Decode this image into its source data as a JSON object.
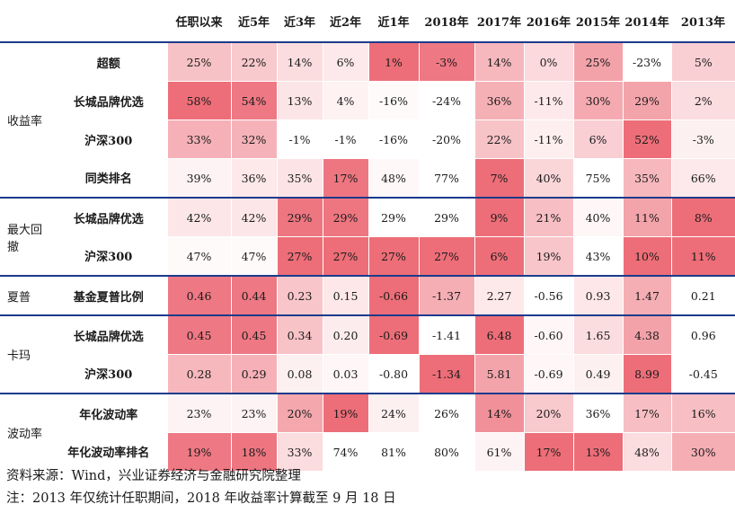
{
  "table": {
    "columns": [
      "任职以来",
      "近5年",
      "近3年",
      "近2年",
      "近1年",
      "2018年",
      "2017年",
      "2016年",
      "2015年",
      "2014年",
      "2013年"
    ],
    "groups": [
      {
        "name": "收益率",
        "rows": [
          {
            "label": "超额",
            "cells": [
              {
                "t": "25%",
                "c": "#f7c2c6"
              },
              {
                "t": "22%",
                "c": "#f8c9cd"
              },
              {
                "t": "14%",
                "c": "#fbdde0"
              },
              {
                "t": "6%",
                "c": "#fde9eb"
              },
              {
                "t": "1%",
                "c": "#ed6e78"
              },
              {
                "t": "-3%",
                "c": "#ee7883"
              },
              {
                "t": "14%",
                "c": "#f6b8bd"
              },
              {
                "t": "0%",
                "c": "#fbd9dc"
              },
              {
                "t": "25%",
                "c": "#f3a2a9"
              },
              {
                "t": "-23%",
                "c": "#ffffff"
              },
              {
                "t": "5%",
                "c": "#f9cfd3"
              }
            ]
          },
          {
            "label": "长城品牌优选",
            "cells": [
              {
                "t": "58%",
                "c": "#ed6e78"
              },
              {
                "t": "54%",
                "c": "#ee7883"
              },
              {
                "t": "13%",
                "c": "#fce5e7"
              },
              {
                "t": "4%",
                "c": "#fef2f3"
              },
              {
                "t": "-16%",
                "c": "#fffafa"
              },
              {
                "t": "-24%",
                "c": "#ffffff"
              },
              {
                "t": "36%",
                "c": "#f5b0b6"
              },
              {
                "t": "-11%",
                "c": "#fde9eb"
              },
              {
                "t": "30%",
                "c": "#f4aab0"
              },
              {
                "t": "29%",
                "c": "#f3a4ab"
              },
              {
                "t": "2%",
                "c": "#fbdcdf"
              }
            ]
          },
          {
            "label": "沪深300",
            "cells": [
              {
                "t": "33%",
                "c": "#f5b1b7"
              },
              {
                "t": "32%",
                "c": "#f5b3b9"
              },
              {
                "t": "-1%",
                "c": "#ffffff"
              },
              {
                "t": "-1%",
                "c": "#ffffff"
              },
              {
                "t": "-16%",
                "c": "#ffffff"
              },
              {
                "t": "-20%",
                "c": "#ffffff"
              },
              {
                "t": "22%",
                "c": "#f7c3c7"
              },
              {
                "t": "-11%",
                "c": "#fdeff0"
              },
              {
                "t": "6%",
                "c": "#f9cfd3"
              },
              {
                "t": "52%",
                "c": "#ed6e78"
              },
              {
                "t": "-3%",
                "c": "#fdf0f1"
              }
            ]
          },
          {
            "label": "同类排名",
            "cells": [
              {
                "t": "39%",
                "c": "#fef3f4"
              },
              {
                "t": "36%",
                "c": "#fde8ea"
              },
              {
                "t": "35%",
                "c": "#fce4e6"
              },
              {
                "t": "17%",
                "c": "#ee7681"
              },
              {
                "t": "48%",
                "c": "#fff8f9"
              },
              {
                "t": "77%",
                "c": "#ffffff"
              },
              {
                "t": "7%",
                "c": "#ed6e78"
              },
              {
                "t": "40%",
                "c": "#fbd6d9"
              },
              {
                "t": "75%",
                "c": "#ffffff"
              },
              {
                "t": "35%",
                "c": "#f6b8bd"
              },
              {
                "t": "66%",
                "c": "#fde9eb"
              }
            ]
          }
        ]
      },
      {
        "name": "最大回撤",
        "rows": [
          {
            "label": "长城品牌优选",
            "cells": [
              {
                "t": "42%",
                "c": "#fde6e8"
              },
              {
                "t": "42%",
                "c": "#fde6e8"
              },
              {
                "t": "29%",
                "c": "#ee7681"
              },
              {
                "t": "29%",
                "c": "#ee7681"
              },
              {
                "t": "29%",
                "c": "#ffffff"
              },
              {
                "t": "29%",
                "c": "#ffffff"
              },
              {
                "t": "9%",
                "c": "#ed6e78"
              },
              {
                "t": "21%",
                "c": "#f7bfc4"
              },
              {
                "t": "40%",
                "c": "#fef6f7"
              },
              {
                "t": "11%",
                "c": "#f3a3aa"
              },
              {
                "t": "8%",
                "c": "#ed6e78"
              }
            ]
          },
          {
            "label": "沪深300",
            "cells": [
              {
                "t": "47%",
                "c": "#fffafa"
              },
              {
                "t": "47%",
                "c": "#fffafa"
              },
              {
                "t": "27%",
                "c": "#ed6e78"
              },
              {
                "t": "27%",
                "c": "#ed6e78"
              },
              {
                "t": "27%",
                "c": "#ed6e78"
              },
              {
                "t": "27%",
                "c": "#ed6e78"
              },
              {
                "t": "6%",
                "c": "#ed6e78"
              },
              {
                "t": "19%",
                "c": "#f8c6ca"
              },
              {
                "t": "43%",
                "c": "#ffffff"
              },
              {
                "t": "10%",
                "c": "#ed6e78"
              },
              {
                "t": "11%",
                "c": "#ed6e78"
              }
            ]
          }
        ]
      },
      {
        "name": "夏普",
        "rows": [
          {
            "label": "基金夏普比例",
            "cells": [
              {
                "t": "0.46",
                "c": "#ee7883"
              },
              {
                "t": "0.44",
                "c": "#ee7883"
              },
              {
                "t": "0.23",
                "c": "#f8c6ca"
              },
              {
                "t": "0.15",
                "c": "#fde7e9"
              },
              {
                "t": "-0.66",
                "c": "#ed6e78"
              },
              {
                "t": "-1.37",
                "c": "#f5aeb4"
              },
              {
                "t": "2.27",
                "c": "#fde8ea"
              },
              {
                "t": "-0.56",
                "c": "#ffffff"
              },
              {
                "t": "0.93",
                "c": "#fde7e9"
              },
              {
                "t": "1.47",
                "c": "#f5aeb4"
              },
              {
                "t": "0.21",
                "c": "#ffffff"
              }
            ]
          }
        ]
      },
      {
        "name": "卡玛",
        "rows": [
          {
            "label": "长城品牌优选",
            "cells": [
              {
                "t": "0.45",
                "c": "#ee7883"
              },
              {
                "t": "0.45",
                "c": "#ee7883"
              },
              {
                "t": "0.34",
                "c": "#f7c3c7"
              },
              {
                "t": "0.20",
                "c": "#fdecee"
              },
              {
                "t": "-0.69",
                "c": "#ed6e78"
              },
              {
                "t": "-1.41",
                "c": "#ffffff"
              },
              {
                "t": "6.48",
                "c": "#ed6e78"
              },
              {
                "t": "-0.60",
                "c": "#fef6f7"
              },
              {
                "t": "1.65",
                "c": "#fbdcdf"
              },
              {
                "t": "4.38",
                "c": "#f3a2a9"
              },
              {
                "t": "0.96",
                "c": "#ffffff"
              }
            ]
          },
          {
            "label": "沪深300",
            "cells": [
              {
                "t": "0.28",
                "c": "#f6b8bd"
              },
              {
                "t": "0.29",
                "c": "#f5b1b7"
              },
              {
                "t": "0.08",
                "c": "#fdf0f1"
              },
              {
                "t": "0.03",
                "c": "#fef6f7"
              },
              {
                "t": "-0.80",
                "c": "#ffffff"
              },
              {
                "t": "-1.34",
                "c": "#ed6e78"
              },
              {
                "t": "5.81",
                "c": "#f3a4ab"
              },
              {
                "t": "-0.69",
                "c": "#fef6f7"
              },
              {
                "t": "0.49",
                "c": "#fdf0f1"
              },
              {
                "t": "8.99",
                "c": "#ed6e78"
              },
              {
                "t": "-0.45",
                "c": "#ffffff"
              }
            ]
          }
        ]
      },
      {
        "name": "波动率",
        "rows": [
          {
            "label": "年化波动率",
            "cells": [
              {
                "t": "23%",
                "c": "#fef3f4"
              },
              {
                "t": "23%",
                "c": "#fef3f4"
              },
              {
                "t": "20%",
                "c": "#f4a8ae"
              },
              {
                "t": "19%",
                "c": "#ed6e78"
              },
              {
                "t": "24%",
                "c": "#fdf0f1"
              },
              {
                "t": "26%",
                "c": "#ffffff"
              },
              {
                "t": "14%",
                "c": "#f19099"
              },
              {
                "t": "20%",
                "c": "#f8c9cd"
              },
              {
                "t": "36%",
                "c": "#ffffff"
              },
              {
                "t": "17%",
                "c": "#f7bfc4"
              },
              {
                "t": "16%",
                "c": "#f7bfc4"
              }
            ]
          },
          {
            "label": "年化波动率排名",
            "cells": [
              {
                "t": "19%",
                "c": "#ee7883"
              },
              {
                "t": "18%",
                "c": "#ee7681"
              },
              {
                "t": "33%",
                "c": "#fbdcdf"
              },
              {
                "t": "74%",
                "c": "#ffffff"
              },
              {
                "t": "81%",
                "c": "#ffffff"
              },
              {
                "t": "80%",
                "c": "#ffffff"
              },
              {
                "t": "61%",
                "c": "#fef3f4"
              },
              {
                "t": "17%",
                "c": "#ed6e78"
              },
              {
                "t": "13%",
                "c": "#ed6e78"
              },
              {
                "t": "48%",
                "c": "#fbdcdf"
              },
              {
                "t": "30%",
                "c": "#f5aeb4"
              }
            ]
          }
        ]
      }
    ]
  },
  "notes": {
    "source": "资料来源：Wind，兴业证券经济与金融研究院整理",
    "note": "注：2013 年仅统计任职期间，2018 年收益率计算截至 9 月 18 日"
  }
}
